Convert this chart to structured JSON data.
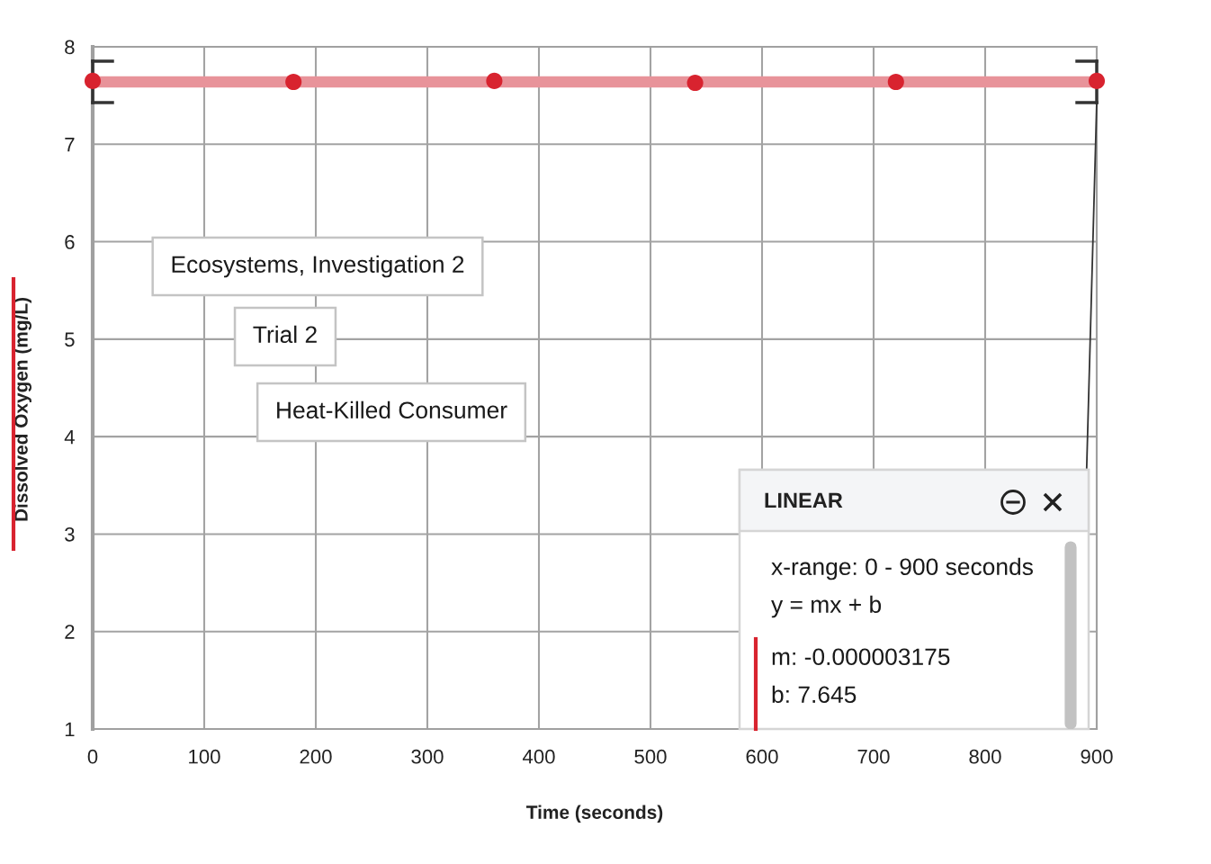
{
  "chart_data": {
    "type": "scatter",
    "title": "Ecosystems, Investigation 2",
    "subtitle": "Trial 2",
    "xlabel": "Time (seconds)",
    "ylabel": "Dissolved Oxygen (mg/L)",
    "annotations": [
      "Heat-Killed Consumer",
      "LINEAR",
      "x-range: 0 - 900 seconds",
      "y = mx + b",
      "m: -0.000003175",
      "b: 7.645"
    ],
    "series": [
      {
        "type": "line",
        "color": "#e8939a",
        "x": [
          0,
          900
        ],
        "values": [
          7.64,
          7.64
        ]
      },
      {
        "color": "#d8232f",
        "marker": "circle",
        "x": [
          0,
          180,
          360,
          540,
          720,
          900
        ],
        "values": [
          7.65,
          7.64,
          7.65,
          7.63,
          7.64,
          7.65
        ]
      }
    ],
    "xlim": [
      0,
      900
    ],
    "ylim": [
      1,
      8
    ],
    "xticks": [
      0,
      100,
      200,
      300,
      400,
      500,
      600,
      700,
      800,
      900
    ],
    "yticks": [
      1,
      2,
      3,
      4,
      5,
      6,
      7,
      8
    ],
    "grid": true
  }
}
